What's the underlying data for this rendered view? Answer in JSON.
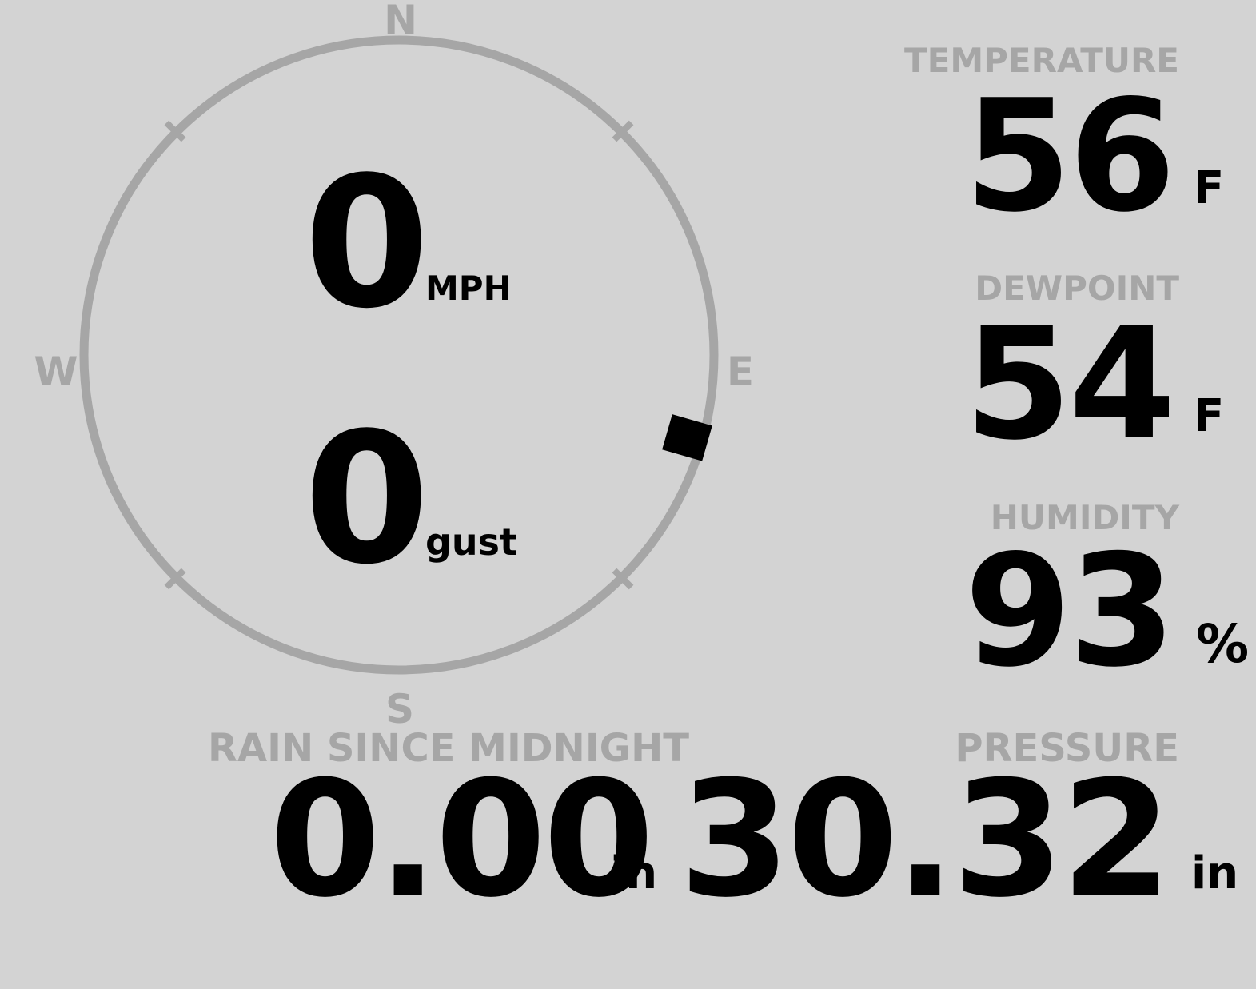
{
  "theme": {
    "background_color": "#d3d3d3",
    "muted_color": "#a6a6a6",
    "value_color": "#000000",
    "marker_color": "#000000"
  },
  "wind_gauge": {
    "compass_labels": {
      "north": "N",
      "east": "E",
      "south": "S",
      "west": "W"
    },
    "speed_value": "0",
    "speed_unit": "MPH",
    "gust_value": "0",
    "gust_unit": "gust",
    "direction_degrees": 106
  },
  "readings": {
    "temperature": {
      "label": "TEMPERATURE",
      "value": "56",
      "unit": "F"
    },
    "dewpoint": {
      "label": "DEWPOINT",
      "value": "54",
      "unit": "F"
    },
    "humidity": {
      "label": "HUMIDITY",
      "value": "93",
      "unit": "%"
    },
    "rain": {
      "label": "RAIN SINCE MIDNIGHT",
      "value": "0.00",
      "unit": "in"
    },
    "pressure": {
      "label": "PRESSURE",
      "value": "30.32",
      "unit": "in"
    }
  }
}
